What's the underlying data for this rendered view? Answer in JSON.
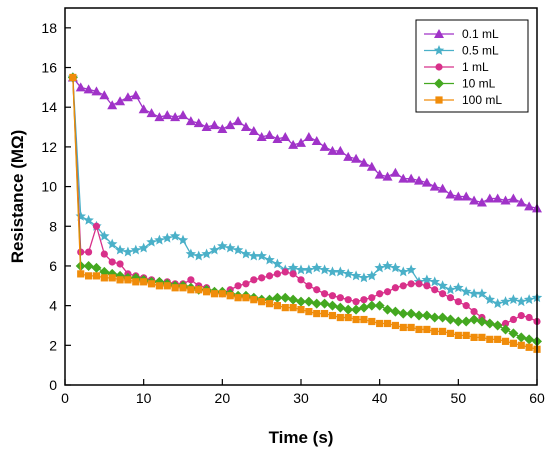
{
  "chart_data": {
    "type": "line",
    "title": "",
    "xlabel": "Time (s)",
    "ylabel": "Resistance (MΩ)",
    "xlim": [
      0,
      60
    ],
    "ylim": [
      0,
      19
    ],
    "xticks": [
      0,
      10,
      20,
      30,
      40,
      50,
      60
    ],
    "yticks": [
      0,
      2,
      4,
      6,
      8,
      10,
      12,
      14,
      16,
      18
    ],
    "grid": false,
    "legend_position": "top-right",
    "x": [
      1,
      2,
      3,
      4,
      5,
      6,
      7,
      8,
      9,
      10,
      11,
      12,
      13,
      14,
      15,
      16,
      17,
      18,
      19,
      20,
      21,
      22,
      23,
      24,
      25,
      26,
      27,
      28,
      29,
      30,
      31,
      32,
      33,
      34,
      35,
      36,
      37,
      38,
      39,
      40,
      41,
      42,
      43,
      44,
      45,
      46,
      47,
      48,
      49,
      50,
      51,
      52,
      53,
      54,
      55,
      56,
      57,
      58,
      59,
      60
    ],
    "series": [
      {
        "name": "0.1 mL",
        "color": "#a033c8",
        "marker": "triangle",
        "values": [
          15.5,
          15.0,
          14.9,
          14.8,
          14.6,
          14.1,
          14.3,
          14.5,
          14.6,
          13.9,
          13.7,
          13.5,
          13.6,
          13.5,
          13.6,
          13.3,
          13.2,
          13.0,
          13.1,
          12.9,
          13.1,
          13.3,
          13.0,
          12.8,
          12.5,
          12.6,
          12.4,
          12.5,
          12.1,
          12.2,
          12.5,
          12.3,
          12.0,
          11.8,
          11.8,
          11.5,
          11.4,
          11.2,
          11.0,
          10.6,
          10.5,
          10.7,
          10.4,
          10.4,
          10.3,
          10.2,
          10.0,
          9.9,
          9.6,
          9.5,
          9.5,
          9.3,
          9.2,
          9.4,
          9.4,
          9.3,
          9.4,
          9.2,
          9.0,
          8.9
        ]
      },
      {
        "name": "0.5 mL",
        "color": "#4ab0c8",
        "marker": "star",
        "values": [
          15.5,
          8.5,
          8.3,
          8.0,
          7.5,
          7.1,
          6.8,
          6.7,
          6.8,
          6.9,
          7.2,
          7.3,
          7.4,
          7.5,
          7.3,
          6.6,
          6.5,
          6.6,
          6.8,
          7.0,
          6.9,
          6.8,
          6.6,
          6.5,
          6.5,
          6.3,
          6.1,
          5.8,
          5.9,
          5.8,
          5.8,
          5.9,
          5.8,
          5.7,
          5.7,
          5.6,
          5.5,
          5.4,
          5.5,
          5.9,
          6.0,
          5.9,
          5.7,
          5.8,
          5.2,
          5.3,
          5.2,
          5.0,
          4.8,
          4.9,
          4.7,
          4.6,
          4.6,
          4.3,
          4.1,
          4.2,
          4.3,
          4.2,
          4.3,
          4.4
        ]
      },
      {
        "name": "1 mL",
        "color": "#d8308a",
        "marker": "circle",
        "values": [
          15.5,
          6.7,
          6.7,
          8.0,
          6.6,
          6.2,
          6.1,
          5.6,
          5.5,
          5.4,
          5.3,
          5.2,
          5.2,
          5.1,
          5.1,
          5.3,
          5.0,
          4.9,
          4.7,
          4.6,
          4.8,
          5.0,
          5.1,
          5.3,
          5.4,
          5.5,
          5.6,
          5.7,
          5.6,
          5.3,
          5.0,
          4.8,
          4.6,
          4.5,
          4.4,
          4.3,
          4.2,
          4.3,
          4.4,
          4.6,
          4.7,
          4.9,
          5.0,
          5.1,
          5.1,
          5.0,
          4.8,
          4.6,
          4.4,
          4.2,
          4.0,
          3.7,
          3.4,
          3.1,
          3.0,
          3.1,
          3.3,
          3.5,
          3.4,
          3.2
        ]
      },
      {
        "name": "10 mL",
        "color": "#44a820",
        "marker": "diamond",
        "values": [
          15.5,
          6.0,
          6.0,
          5.9,
          5.7,
          5.6,
          5.5,
          5.4,
          5.4,
          5.3,
          5.2,
          5.2,
          5.1,
          5.0,
          5.0,
          4.9,
          4.8,
          4.8,
          4.7,
          4.7,
          4.6,
          4.5,
          4.5,
          4.4,
          4.3,
          4.3,
          4.4,
          4.4,
          4.3,
          4.2,
          4.2,
          4.1,
          4.1,
          4.0,
          3.9,
          3.8,
          3.8,
          3.9,
          4.0,
          4.0,
          3.8,
          3.7,
          3.6,
          3.6,
          3.5,
          3.5,
          3.4,
          3.4,
          3.3,
          3.2,
          3.2,
          3.3,
          3.2,
          3.1,
          3.0,
          2.8,
          2.6,
          2.4,
          2.3,
          2.2
        ]
      },
      {
        "name": "100 mL",
        "color": "#f08c0a",
        "marker": "square",
        "values": [
          15.5,
          5.6,
          5.5,
          5.5,
          5.4,
          5.4,
          5.3,
          5.3,
          5.2,
          5.2,
          5.1,
          5.0,
          5.0,
          4.9,
          4.9,
          4.8,
          4.8,
          4.7,
          4.6,
          4.6,
          4.5,
          4.4,
          4.4,
          4.3,
          4.2,
          4.1,
          4.0,
          3.9,
          3.9,
          3.8,
          3.7,
          3.6,
          3.6,
          3.5,
          3.4,
          3.4,
          3.3,
          3.3,
          3.2,
          3.1,
          3.1,
          3.0,
          2.9,
          2.9,
          2.8,
          2.8,
          2.7,
          2.7,
          2.6,
          2.5,
          2.5,
          2.4,
          2.4,
          2.3,
          2.3,
          2.2,
          2.1,
          2.0,
          1.9,
          1.8
        ]
      }
    ]
  }
}
